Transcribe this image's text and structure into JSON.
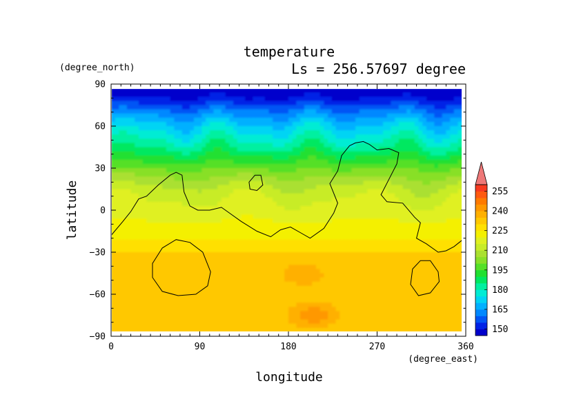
{
  "chart_data": {
    "type": "heatmap",
    "title": "temperature",
    "subtitle": "Ls = 256.57697 degree",
    "xlabel": "longitude",
    "ylabel": "latitude",
    "x_unit": "(degree_east)",
    "y_unit": "(degree_north)",
    "xlim": [
      0,
      360
    ],
    "ylim": [
      -90,
      90
    ],
    "data_extent": {
      "lon": [
        0,
        357
      ],
      "lat": [
        -87,
        87
      ]
    },
    "x_ticks": [
      0,
      90,
      180,
      270,
      360
    ],
    "y_ticks": [
      90,
      60,
      30,
      0,
      -30,
      -60,
      -90
    ],
    "x_tick_labels": [
      "0",
      "90",
      "180",
      "270",
      "360"
    ],
    "y_tick_labels": [
      "90",
      "60",
      "30",
      "0",
      "−30",
      "−60",
      "−90"
    ],
    "colorbar": {
      "labels": [
        "255",
        "240",
        "225",
        "210",
        "195",
        "180",
        "165",
        "150"
      ],
      "levels": [
        145,
        150,
        155,
        160,
        165,
        170,
        175,
        180,
        185,
        190,
        195,
        200,
        205,
        210,
        215,
        220,
        225,
        230,
        235,
        240,
        245,
        250,
        255,
        260
      ],
      "colors": [
        "#0000cc",
        "#0022e6",
        "#0055f5",
        "#0088ff",
        "#00b0ff",
        "#00d4f4",
        "#00ecd4",
        "#00f0a0",
        "#00e860",
        "#20e030",
        "#55e028",
        "#88e028",
        "#aae030",
        "#c8ec28",
        "#e0f020",
        "#f4f000",
        "#ffe000",
        "#ffc800",
        "#ffb000",
        "#ff9800",
        "#ff7a00",
        "#ff5a10",
        "#f83a20",
        "#ee7878"
      ]
    },
    "temperature_profile": {
      "lat": [
        87,
        80,
        75,
        70,
        65,
        60,
        55,
        50,
        45,
        40,
        35,
        30,
        25,
        20,
        15,
        10,
        5,
        0,
        -5,
        -10,
        -15,
        -20,
        -25,
        -30,
        -40,
        -50,
        -60,
        -70,
        -80,
        -87
      ],
      "value": [
        147,
        150,
        156,
        162,
        167,
        172,
        176,
        180,
        184,
        189,
        194,
        199,
        204,
        208,
        212,
        214,
        216,
        217,
        219,
        221,
        223,
        225,
        228,
        230,
        231,
        232,
        231,
        231,
        231,
        230
      ]
    },
    "warm_regions": [
      {
        "lon": 195,
        "lat": -45,
        "value": 238
      },
      {
        "lon": 205,
        "lat": -75,
        "value": 243
      }
    ],
    "topography_contour": {
      "main": [
        [
          0,
          -18
        ],
        [
          12,
          -8
        ],
        [
          20,
          -1
        ],
        [
          28,
          8
        ],
        [
          36,
          10
        ],
        [
          48,
          18
        ],
        [
          60,
          25
        ],
        [
          66,
          27
        ],
        [
          72,
          25
        ],
        [
          74,
          13
        ],
        [
          80,
          3
        ],
        [
          88,
          0
        ],
        [
          100,
          0
        ],
        [
          112,
          2
        ],
        [
          118,
          -1
        ],
        [
          132,
          -8
        ],
        [
          148,
          -15
        ],
        [
          162,
          -19
        ],
        [
          172,
          -14
        ],
        [
          182,
          -12
        ],
        [
          192,
          -16
        ],
        [
          202,
          -20
        ],
        [
          216,
          -13
        ],
        [
          226,
          -2
        ],
        [
          230,
          5
        ],
        [
          226,
          12
        ],
        [
          222,
          19
        ],
        [
          230,
          28
        ],
        [
          234,
          39
        ],
        [
          242,
          46
        ],
        [
          248,
          48
        ],
        [
          256,
          49
        ],
        [
          262,
          47
        ],
        [
          270,
          43
        ],
        [
          282,
          44
        ],
        [
          292,
          41
        ],
        [
          290,
          33
        ],
        [
          282,
          22
        ],
        [
          274,
          11
        ],
        [
          280,
          6
        ],
        [
          296,
          5
        ],
        [
          308,
          -5
        ],
        [
          314,
          -9
        ],
        [
          310,
          -20
        ],
        [
          320,
          -24
        ],
        [
          332,
          -30
        ],
        [
          340,
          -29
        ],
        [
          348,
          -26
        ],
        [
          357,
          -21
        ]
      ],
      "loops": [
        [
          [
            140,
            20
          ],
          [
            146,
            25
          ],
          [
            152,
            25
          ],
          [
            154,
            18
          ],
          [
            148,
            14
          ],
          [
            141,
            15
          ],
          [
            140,
            20
          ]
        ],
        [
          [
            42,
            -38
          ],
          [
            52,
            -27
          ],
          [
            66,
            -21
          ],
          [
            80,
            -23
          ],
          [
            93,
            -30
          ],
          [
            101,
            -44
          ],
          [
            98,
            -54
          ],
          [
            86,
            -60
          ],
          [
            68,
            -61
          ],
          [
            52,
            -58
          ],
          [
            42,
            -48
          ],
          [
            42,
            -38
          ]
        ],
        [
          [
            306,
            -42
          ],
          [
            314,
            -36
          ],
          [
            324,
            -36
          ],
          [
            332,
            -44
          ],
          [
            333,
            -51
          ],
          [
            324,
            -59
          ],
          [
            312,
            -61
          ],
          [
            304,
            -53
          ],
          [
            306,
            -42
          ]
        ]
      ]
    }
  }
}
